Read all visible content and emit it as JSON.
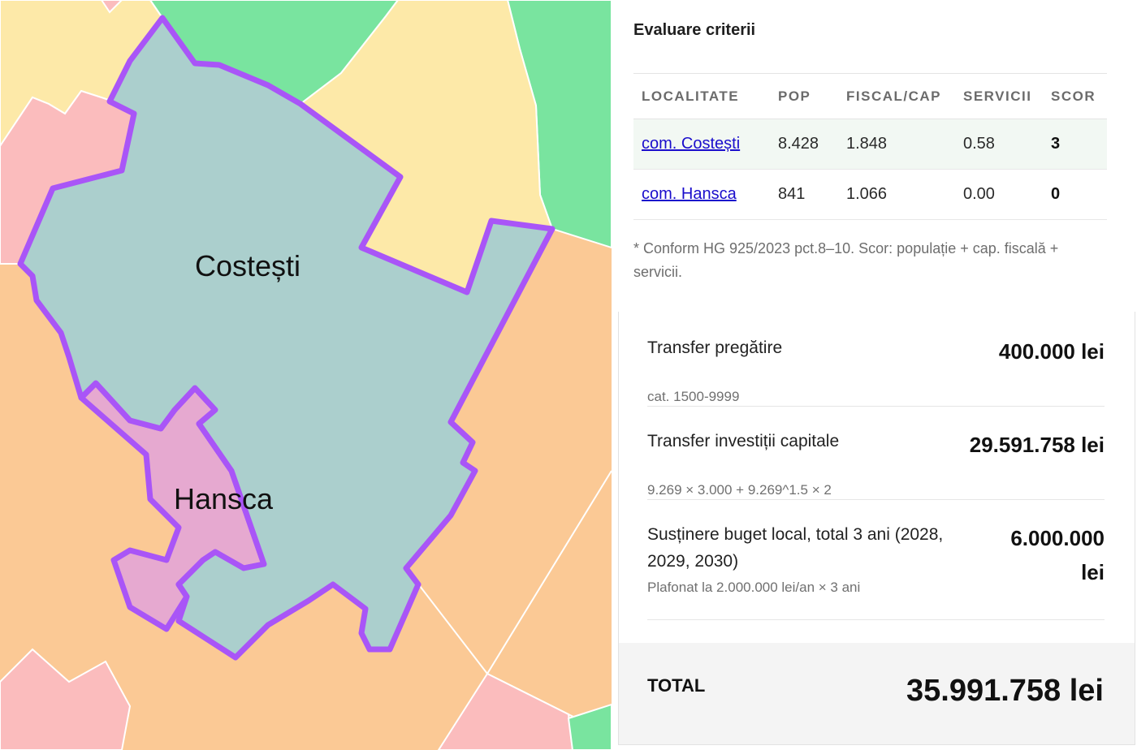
{
  "map": {
    "labels": {
      "costesti": "Costești",
      "hansca": "Hansca"
    },
    "colors": {
      "yellow": "#fde9a8",
      "green": "#79e49f",
      "pink": "#fbbcbd",
      "orange": "#fbc995",
      "teal": "#abcfcd",
      "mauve": "#e6a9d0",
      "outline": "#a955f7",
      "border": "#ffffff"
    }
  },
  "criteria": {
    "title": "Evaluare criterii",
    "headers": [
      "LOCALITATE",
      "POP",
      "FISCAL/CAP",
      "SERVICII",
      "SCOR"
    ],
    "rows": [
      {
        "name": "com. Costești",
        "pop": "8.428",
        "fiscal": "1.848",
        "servicii": "0.58",
        "scor": "3"
      },
      {
        "name": "com. Hansca",
        "pop": "841",
        "fiscal": "1.066",
        "servicii": "0.00",
        "scor": "0"
      }
    ],
    "footnote": "* Conform HG 925/2023 pct.8–10. Scor: populație + cap. fiscală + servicii."
  },
  "transfers": {
    "items": [
      {
        "label": "Transfer pregătire",
        "sub": "cat. 1500-9999",
        "amount": "400.000 lei"
      },
      {
        "label": "Transfer investiții capitale",
        "sub": "9.269 × 3.000 + 9.269^1.5 × 2",
        "amount": "29.591.758 lei"
      },
      {
        "label": "Susținere buget local, total 3 ani (2028, 2029, 2030)",
        "sub": "Plafonat la 2.000.000 lei/an × 3 ani",
        "amount": "6.000.000 lei"
      }
    ],
    "total_label": "TOTAL",
    "total_amount": "35.991.758 lei"
  }
}
